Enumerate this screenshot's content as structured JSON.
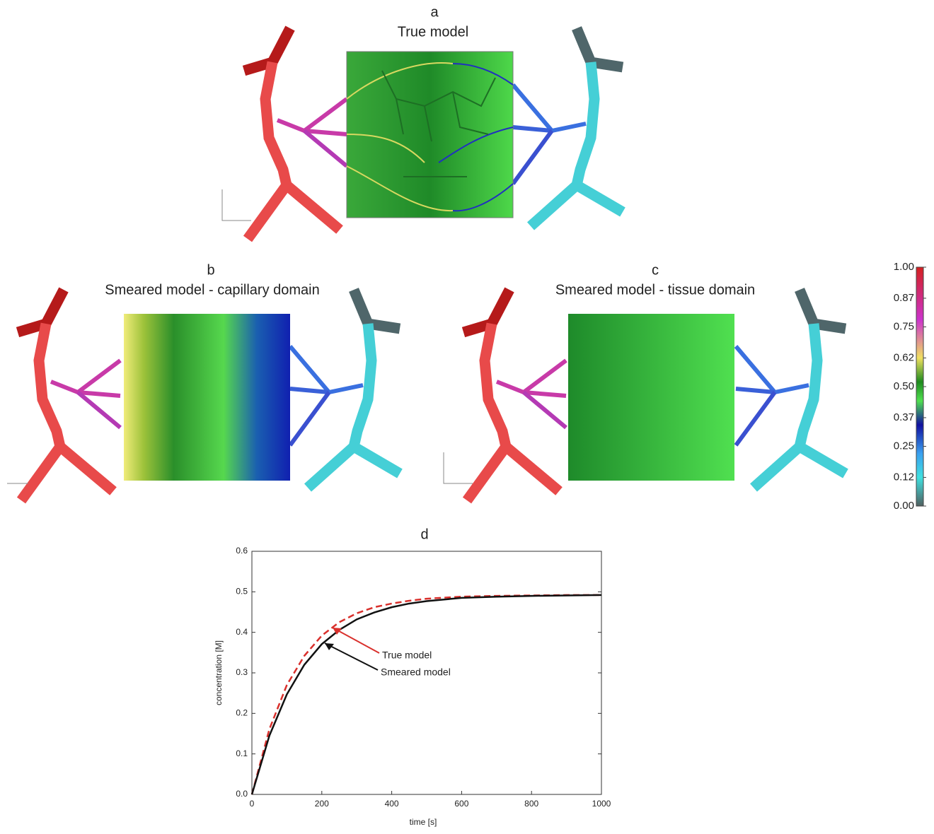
{
  "panels": [
    {
      "label": "a",
      "title": "True model"
    },
    {
      "label": "b",
      "title": "Smeared model - capillary domain"
    },
    {
      "label": "c",
      "title": "Smeared model - tissue domain"
    }
  ],
  "colorbar": {
    "lim": [
      0,
      1
    ],
    "ticks": [
      {
        "value": 1,
        "label": "1.00"
      },
      0.87,
      0.75,
      0.62,
      {
        "value": 0.5,
        "label": "0.50"
      },
      0.37,
      0.25,
      0.12,
      {
        "value": 0,
        "label": "0.00"
      }
    ]
  },
  "chart_data": {
    "type": "line",
    "panel_label": "d",
    "x_label": "time [s]",
    "y_label": "concentration [M]",
    "x": [
      0,
      50,
      100,
      150,
      200,
      250,
      300,
      350,
      400,
      450,
      500,
      600,
      700,
      800,
      900,
      1000
    ],
    "series": [
      {
        "name": "True model",
        "color": "#d9302c",
        "dash": true,
        "values": [
          0,
          0.161,
          0.27,
          0.342,
          0.392,
          0.425,
          0.447,
          0.462,
          0.471,
          0.478,
          0.483,
          0.488,
          0.49,
          0.491,
          0.492,
          0.492
        ]
      },
      {
        "name": "Smeared model",
        "color": "#111111",
        "dash": false,
        "values": [
          0,
          0.145,
          0.247,
          0.32,
          0.371,
          0.406,
          0.432,
          0.449,
          0.462,
          0.471,
          0.477,
          0.485,
          0.488,
          0.49,
          0.491,
          0.492
        ]
      }
    ],
    "xlim": [
      0,
      1000
    ],
    "xticks": [
      0,
      200,
      400,
      600,
      800,
      1000
    ],
    "ylim": [
      0,
      0.6
    ],
    "yticks": [
      {
        "value": 0,
        "label": "0.0"
      },
      0.1,
      0.2,
      0.3,
      0.4,
      0.5,
      0.6
    ]
  }
}
